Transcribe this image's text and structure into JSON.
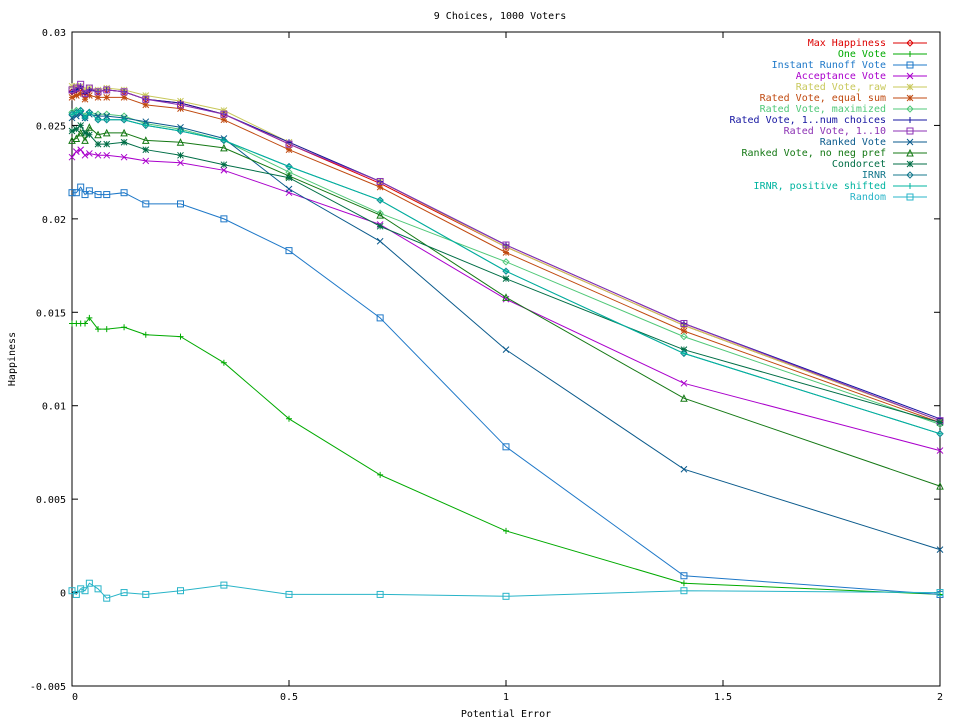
{
  "chart_data": {
    "type": "line",
    "title": "9 Choices, 1000 Voters",
    "xlabel": "Potential Error",
    "ylabel": "Happiness",
    "xlim": [
      0,
      2
    ],
    "ylim": [
      -0.005,
      0.03
    ],
    "xticks": [
      "0",
      "0.5",
      "1",
      "1.5",
      "2"
    ],
    "yticks": [
      "-0.005",
      "0",
      "0.005",
      "0.01",
      "0.015",
      "0.02",
      "0.025",
      "0.03"
    ],
    "grid": false,
    "legend_position": "top-right",
    "x": [
      0,
      0.01,
      0.02,
      0.03,
      0.04,
      0.06,
      0.08,
      0.12,
      0.17,
      0.25,
      0.35,
      0.5,
      0.71,
      1.0,
      1.41,
      2.0
    ],
    "series": [
      {
        "name": "Max Happiness",
        "color": "#dd0000",
        "marker": "diamond",
        "values": [
          0.0268,
          0.0269,
          0.027,
          0.0266,
          0.0269,
          0.0268,
          0.0269,
          0.0268,
          0.0264,
          0.0262,
          0.0256,
          0.024,
          0.0219,
          0.0185,
          0.0143,
          0.0092
        ]
      },
      {
        "name": "One Vote",
        "color": "#00aa00",
        "marker": "plus",
        "values": [
          0.0144,
          0.0144,
          0.0144,
          0.0144,
          0.0147,
          0.0141,
          0.0141,
          0.0142,
          0.0138,
          0.0137,
          0.0123,
          0.0093,
          0.0063,
          0.0033,
          0.0005,
          -0.0001
        ]
      },
      {
        "name": "Instant Runoff Vote",
        "color": "#1e78c8",
        "marker": "square",
        "values": [
          0.0214,
          0.0214,
          0.0217,
          0.0213,
          0.0215,
          0.0213,
          0.0213,
          0.0214,
          0.0208,
          0.0208,
          0.02,
          0.0183,
          0.0147,
          0.0078,
          0.0009,
          -0.0001
        ]
      },
      {
        "name": "Acceptance Vote",
        "color": "#aa00cc",
        "marker": "x",
        "values": [
          0.0233,
          0.0236,
          0.0237,
          0.0234,
          0.0235,
          0.0234,
          0.0234,
          0.0233,
          0.0231,
          0.023,
          0.0226,
          0.0214,
          0.0197,
          0.0157,
          0.0112,
          0.0076
        ]
      },
      {
        "name": "Rated Vote, raw",
        "color": "#c8c85a",
        "marker": "asterisk",
        "values": [
          0.0271,
          0.0271,
          0.0271,
          0.0269,
          0.027,
          0.0269,
          0.027,
          0.0269,
          0.0266,
          0.0263,
          0.0258,
          0.0241,
          0.022,
          0.0185,
          0.0143,
          0.0092
        ]
      },
      {
        "name": "Rated Vote, equal sum",
        "color": "#c04a10",
        "marker": "asterisk",
        "values": [
          0.0265,
          0.0266,
          0.0267,
          0.0264,
          0.0266,
          0.0265,
          0.0265,
          0.0265,
          0.0261,
          0.0259,
          0.0253,
          0.0237,
          0.0217,
          0.0182,
          0.014,
          0.0091
        ]
      },
      {
        "name": "Rated Vote, maximized",
        "color": "#50c878",
        "marker": "diamond",
        "values": [
          0.0257,
          0.0258,
          0.0258,
          0.0255,
          0.0257,
          0.0256,
          0.0256,
          0.0255,
          0.0251,
          0.0248,
          0.0242,
          0.0225,
          0.0203,
          0.0177,
          0.0137,
          0.009
        ]
      },
      {
        "name": "Rated Vote, 1..num choices",
        "color": "#1414a0",
        "marker": "plus",
        "values": [
          0.0268,
          0.0269,
          0.0271,
          0.0267,
          0.0269,
          0.0268,
          0.0269,
          0.0268,
          0.0264,
          0.0262,
          0.0256,
          0.0241,
          0.022,
          0.0186,
          0.0144,
          0.0093
        ]
      },
      {
        "name": "Rated Vote, 1..10",
        "color": "#8c32b4",
        "marker": "square",
        "values": [
          0.0269,
          0.027,
          0.0272,
          0.0267,
          0.027,
          0.0268,
          0.0269,
          0.0268,
          0.0264,
          0.0261,
          0.0256,
          0.024,
          0.022,
          0.0186,
          0.0144,
          0.0092
        ]
      },
      {
        "name": "Ranked Vote",
        "color": "#0a5a8c",
        "marker": "x",
        "values": [
          0.0254,
          0.0255,
          0.0256,
          0.0254,
          0.0256,
          0.0255,
          0.0255,
          0.0254,
          0.0252,
          0.0249,
          0.0243,
          0.0216,
          0.0188,
          0.013,
          0.0066,
          0.0023
        ]
      },
      {
        "name": "Ranked Vote, no neg pref",
        "color": "#147814",
        "marker": "triangle",
        "values": [
          0.0242,
          0.0243,
          0.0246,
          0.0242,
          0.0249,
          0.0245,
          0.0246,
          0.0246,
          0.0242,
          0.0241,
          0.0238,
          0.0223,
          0.0202,
          0.0158,
          0.0104,
          0.0057
        ]
      },
      {
        "name": "Condorcet",
        "color": "#006e46",
        "marker": "asterisk",
        "values": [
          0.0247,
          0.0248,
          0.025,
          0.0246,
          0.0245,
          0.024,
          0.024,
          0.0241,
          0.0237,
          0.0234,
          0.0229,
          0.0222,
          0.0196,
          0.0168,
          0.013,
          0.0091
        ]
      },
      {
        "name": "IRNR",
        "color": "#14788c",
        "marker": "diamond",
        "values": [
          0.0256,
          0.0257,
          0.0258,
          0.0254,
          0.0257,
          0.0253,
          0.0253,
          0.0253,
          0.025,
          0.0247,
          0.0242,
          0.0228,
          0.021,
          0.0172,
          0.0128,
          0.0085
        ]
      },
      {
        "name": "IRNR, positive shifted",
        "color": "#00b4a0",
        "marker": "plus",
        "values": [
          0.0256,
          0.0257,
          0.0258,
          0.0254,
          0.0257,
          0.0253,
          0.0253,
          0.0253,
          0.025,
          0.0247,
          0.0242,
          0.0228,
          0.021,
          0.0172,
          0.0128,
          0.0085
        ]
      },
      {
        "name": "Random",
        "color": "#28b4c8",
        "marker": "square",
        "values": [
          0.0001,
          -0.0001,
          0.0002,
          0.0001,
          0.0005,
          0.0002,
          -0.0003,
          0.0,
          -0.0001,
          0.0001,
          0.0004,
          -0.0001,
          -0.0001,
          -0.0002,
          0.0001,
          0.0
        ]
      }
    ]
  }
}
